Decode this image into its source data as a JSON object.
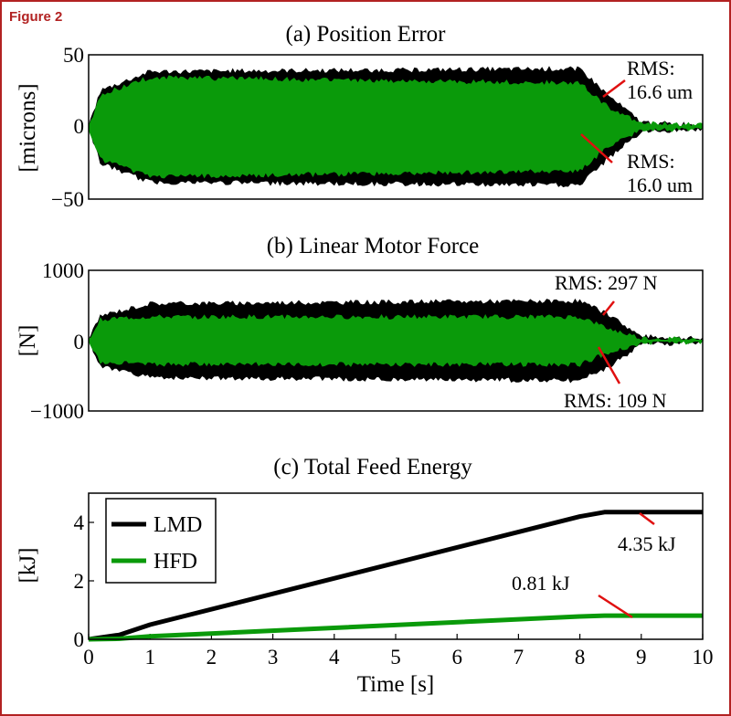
{
  "figure_label": "Figure 2",
  "colors": {
    "lmd": "#000000",
    "hfd": "#0a9a0a",
    "annotation": "#e01010",
    "frame": "#b22222"
  },
  "chart_data": [
    {
      "type": "line",
      "title": "(a) Position Error",
      "ylabel": "[microns]",
      "xlim": [
        0,
        10
      ],
      "ylim": [
        -50,
        50
      ],
      "yticks": [
        "50",
        "0",
        "−50"
      ],
      "series": [
        {
          "color_key": "lmd",
          "envelope_time": [
            0,
            0.2,
            1,
            8,
            8.5,
            9,
            10
          ],
          "envelope_amplitude": [
            0,
            25,
            38,
            40,
            20,
            3,
            1
          ]
        },
        {
          "color_key": "hfd",
          "envelope_time": [
            0,
            0.2,
            1,
            8,
            8.5,
            9,
            10
          ],
          "envelope_amplitude": [
            0,
            22,
            34,
            30,
            12,
            2,
            1
          ]
        }
      ],
      "annotations": [
        {
          "lines": [
            "RMS:",
            "16.6 um"
          ]
        },
        {
          "lines": [
            "RMS:",
            "16.0 um"
          ]
        }
      ]
    },
    {
      "type": "line",
      "title": "(b) Linear Motor Force",
      "ylabel": "[N]",
      "xlim": [
        0,
        10
      ],
      "ylim": [
        -1000,
        1000
      ],
      "yticks": [
        "1000",
        "0",
        "−1000"
      ],
      "series": [
        {
          "color_key": "lmd",
          "envelope_time": [
            0,
            0.2,
            1,
            8,
            8.5,
            9,
            10
          ],
          "envelope_amplitude": [
            0,
            350,
            520,
            560,
            350,
            50,
            20
          ]
        },
        {
          "color_key": "hfd",
          "envelope_time": [
            0,
            0.2,
            1,
            8,
            8.5,
            9,
            10
          ],
          "envelope_amplitude": [
            0,
            300,
            330,
            330,
            150,
            30,
            10
          ]
        }
      ],
      "annotations": [
        {
          "lines": [
            "RMS: 297 N"
          ]
        },
        {
          "lines": [
            "RMS: 109 N"
          ]
        }
      ]
    },
    {
      "type": "line",
      "title": "(c) Total Feed Energy",
      "xlabel": "Time [s]",
      "ylabel": "[kJ]",
      "xlim": [
        0,
        10
      ],
      "ylim": [
        0,
        5
      ],
      "xticks": [
        0,
        1,
        2,
        3,
        4,
        5,
        6,
        7,
        8,
        9,
        10
      ],
      "yticks": [
        0,
        2,
        4
      ],
      "legend": "top-left",
      "series": [
        {
          "name": "LMD",
          "color_key": "lmd",
          "x": [
            0,
            0.5,
            1,
            8,
            8.4,
            10
          ],
          "y": [
            0,
            0.15,
            0.5,
            4.2,
            4.35,
            4.35
          ]
        },
        {
          "name": "HFD",
          "color_key": "hfd",
          "x": [
            0,
            0.5,
            1,
            8,
            8.4,
            10
          ],
          "y": [
            0,
            0.02,
            0.1,
            0.78,
            0.81,
            0.81
          ]
        }
      ],
      "annotations": [
        {
          "lines": [
            "4.35 kJ"
          ]
        },
        {
          "lines": [
            "0.81 kJ"
          ]
        }
      ]
    }
  ]
}
